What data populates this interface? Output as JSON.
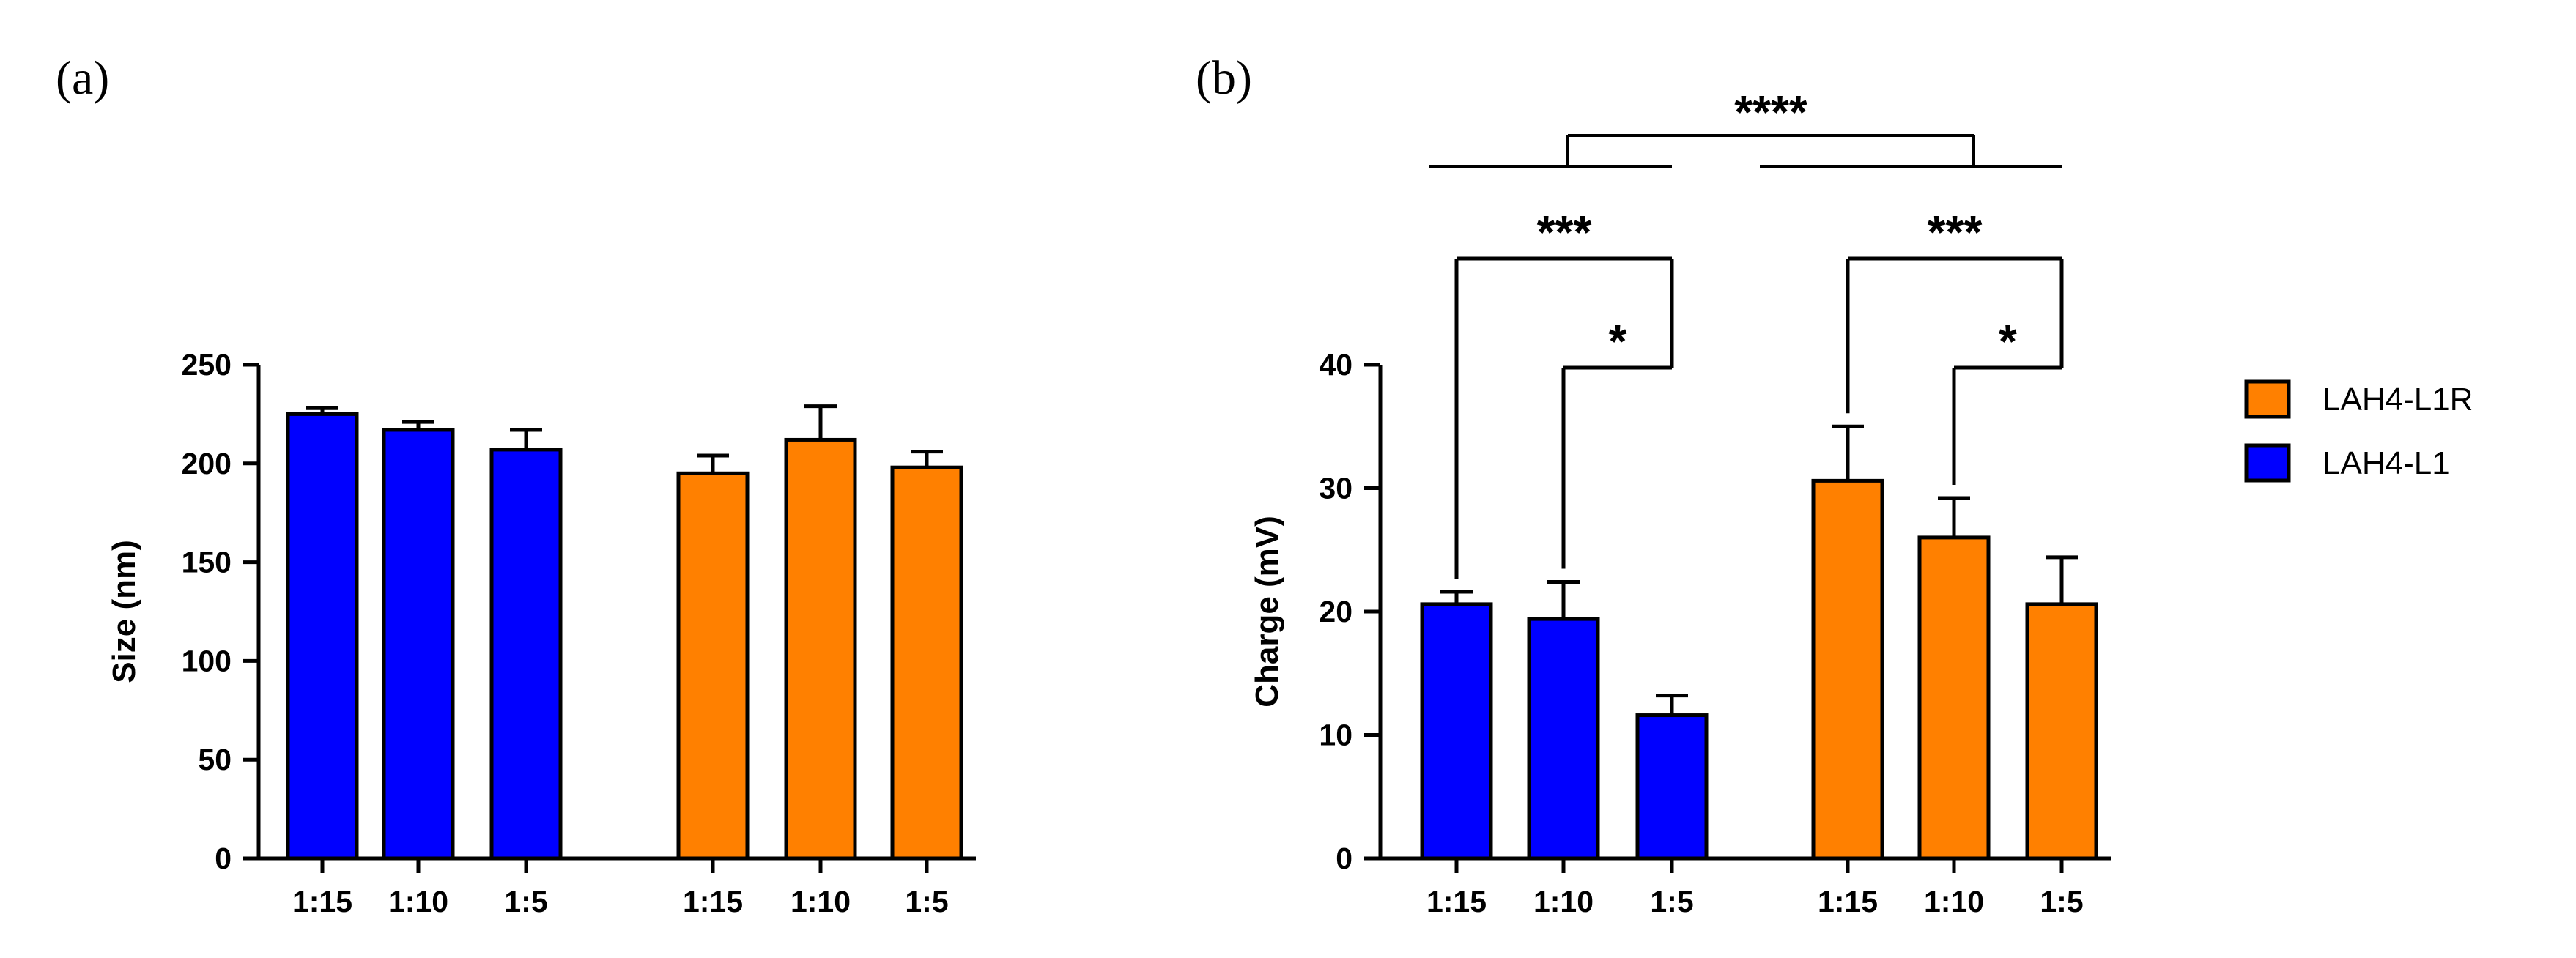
{
  "colors": {
    "LAH4-L1": "#0000ff",
    "LAH4-L1R": "#ff8000",
    "axis": "#000000"
  },
  "legend": [
    {
      "name": "LAH4-L1R",
      "color": "#ff8000"
    },
    {
      "name": "LAH4-L1",
      "color": "#0000ff"
    }
  ],
  "chart_data": [
    {
      "panel_label": "(a)",
      "type": "bar",
      "ylabel": "Size (nm)",
      "xlabel": "",
      "ylim": [
        0,
        250
      ],
      "yticks": [
        0,
        50,
        100,
        150,
        200,
        250
      ],
      "grid": false,
      "bars": [
        {
          "category": "1:15",
          "series": "LAH4-L1",
          "value": 225,
          "error": 3
        },
        {
          "category": "1:10",
          "series": "LAH4-L1",
          "value": 217,
          "error": 4
        },
        {
          "category": "1:5",
          "series": "LAH4-L1",
          "value": 207,
          "error": 10
        },
        {
          "category": "1:15",
          "series": "LAH4-L1R",
          "value": 195,
          "error": 9
        },
        {
          "category": "1:10",
          "series": "LAH4-L1R",
          "value": 212,
          "error": 17
        },
        {
          "category": "1:5",
          "series": "LAH4-L1R",
          "value": 198,
          "error": 8
        }
      ],
      "significance": []
    },
    {
      "panel_label": "(b)",
      "type": "bar",
      "ylabel": "Charge (mV)",
      "xlabel": "",
      "ylim": [
        0,
        40
      ],
      "yticks": [
        0,
        10,
        20,
        30,
        40
      ],
      "grid": false,
      "bars": [
        {
          "category": "1:15",
          "series": "LAH4-L1",
          "value": 20.6,
          "error": 1.0
        },
        {
          "category": "1:10",
          "series": "LAH4-L1",
          "value": 19.4,
          "error": 3.0
        },
        {
          "category": "1:5",
          "series": "LAH4-L1",
          "value": 11.6,
          "error": 1.6
        },
        {
          "category": "1:15",
          "series": "LAH4-L1R",
          "value": 30.6,
          "error": 4.4
        },
        {
          "category": "1:10",
          "series": "LAH4-L1R",
          "value": 26.0,
          "error": 3.2
        },
        {
          "category": "1:5",
          "series": "LAH4-L1R",
          "value": 20.6,
          "error": 3.8
        }
      ],
      "significance": [
        {
          "from": 0,
          "to": 2,
          "label": "***"
        },
        {
          "from": 1,
          "to": 2,
          "label": "*"
        },
        {
          "from": 3,
          "to": 5,
          "label": "***"
        },
        {
          "from": 4,
          "to": 5,
          "label": "*"
        },
        {
          "group_from": [
            0,
            2
          ],
          "group_to": [
            3,
            5
          ],
          "label": "****"
        }
      ]
    }
  ]
}
